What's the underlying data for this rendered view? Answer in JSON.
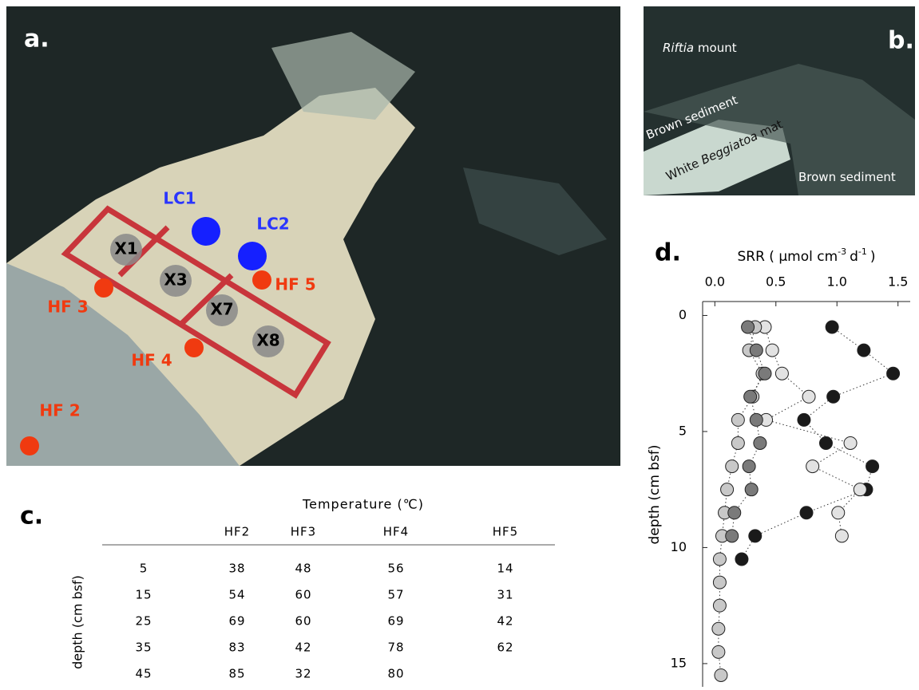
{
  "panel_a": {
    "label": "a.",
    "markers": [
      "LC1",
      "LC2",
      "X1",
      "X3",
      "X7",
      "X8",
      "HF 3",
      "HF 5",
      "HF 4",
      "HF 2"
    ]
  },
  "panel_b": {
    "label": "b.",
    "annotations": [
      {
        "italic": "Riftia",
        "post": "mount"
      },
      {
        "post": "Brown sediment"
      },
      {
        "pre": "White",
        "italic": "Beggiatoa",
        "post": "mat"
      },
      {
        "post": "Brown sediment"
      }
    ]
  },
  "panel_c": {
    "label": "c.",
    "title": "Temperature (℃)",
    "columns": [
      "HF2",
      "HF3",
      "HF4",
      "HF5"
    ],
    "row_axis_label": "depth (cm bsf)",
    "rows": [
      [
        5,
        38,
        48,
        56,
        14
      ],
      [
        15,
        54,
        60,
        57,
        31
      ],
      [
        25,
        69,
        60,
        69,
        42
      ],
      [
        35,
        83,
        42,
        78,
        62
      ],
      [
        45,
        85,
        32,
        80
      ]
    ]
  },
  "chart_data": {
    "type": "scatter",
    "panel_label": "d.",
    "xlabel_parts": [
      "SRR ( µmol cm",
      "-3",
      "d",
      "-1",
      ")"
    ],
    "ylabel": "depth (cm bsf)",
    "xlim": [
      -0.1,
      1.6
    ],
    "ylim": [
      -0.6,
      16
    ],
    "y_inverted": true,
    "xticks": [
      {
        "value": 0,
        "label": "0.0"
      },
      0.5,
      {
        "value": 1,
        "label": "1.0"
      },
      1.5
    ],
    "yticks": [
      0,
      5,
      10,
      15
    ],
    "series": [
      {
        "color": "#1a1a1a",
        "x": [
          0.96,
          1.22,
          1.46,
          0.97,
          0.73,
          0.91,
          1.29,
          1.24,
          0.75,
          0.33,
          0.22
        ],
        "y": [
          0.5,
          1.5,
          2.5,
          3.5,
          4.5,
          5.5,
          6.5,
          7.5,
          8.5,
          9.5,
          10.5
        ]
      },
      {
        "color": "#e2e2e2",
        "x": [
          0.41,
          0.47,
          0.55,
          0.77,
          0.42,
          1.11,
          0.8,
          1.19,
          1.01,
          1.04
        ],
        "y": [
          0.5,
          1.5,
          2.5,
          3.5,
          4.5,
          5.5,
          6.5,
          7.5,
          8.5,
          9.5
        ]
      },
      {
        "color": "#c8c8c8",
        "x": [
          0.33,
          0.28,
          0.39,
          0.31,
          0.19,
          0.19,
          0.14,
          0.1,
          0.08,
          0.06,
          0.04,
          0.04,
          0.04,
          0.03,
          0.03,
          0.05
        ],
        "y": [
          0.5,
          1.5,
          2.5,
          3.5,
          4.5,
          5.5,
          6.5,
          7.5,
          8.5,
          9.5,
          10.5,
          11.5,
          12.5,
          13.5,
          14.5,
          15.5
        ]
      },
      {
        "color": "#7a7a7a",
        "x": [
          0.27,
          0.34,
          0.41,
          0.29,
          0.34,
          0.37,
          0.28,
          0.3,
          0.16,
          0.14
        ],
        "y": [
          0.5,
          1.5,
          2.5,
          3.5,
          4.5,
          5.5,
          6.5,
          7.5,
          8.5,
          9.5
        ]
      }
    ]
  }
}
